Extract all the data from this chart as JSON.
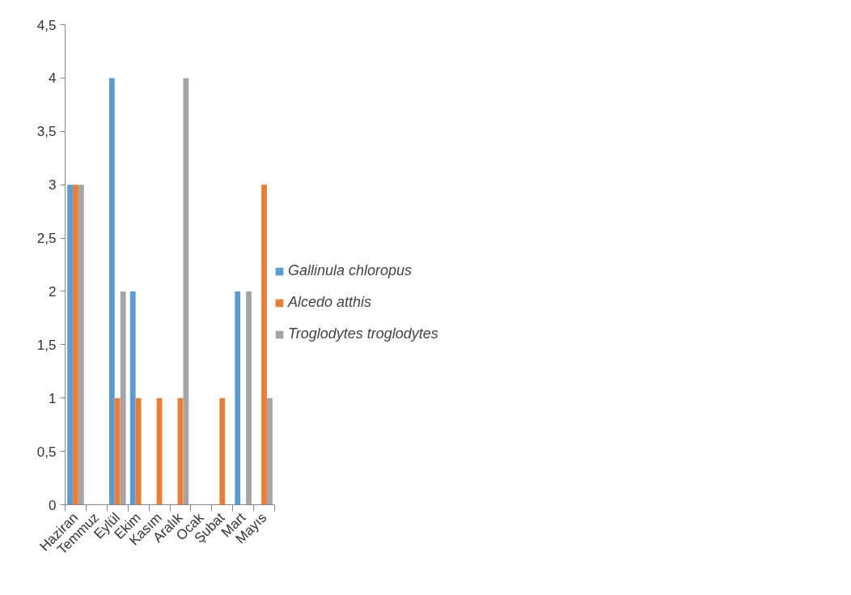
{
  "chart_data": {
    "type": "bar",
    "categories": [
      "Haziran",
      "Temmuz",
      "Eylül",
      "Ekim",
      "Kasım",
      "Aralık",
      "Ocak",
      "Şubat",
      "Mart",
      "Mayıs"
    ],
    "series": [
      {
        "name": "Gallinula chloropus",
        "color": "#5b9bd5",
        "values": [
          3,
          0,
          4,
          2,
          0,
          0,
          0,
          0,
          2,
          0
        ]
      },
      {
        "name": "Alcedo atthis",
        "color": "#ed7d31",
        "values": [
          3,
          0,
          1,
          1,
          1,
          1,
          0,
          1,
          0,
          3
        ]
      },
      {
        "name": "Troglodytes troglodytes",
        "color": "#a5a5a5",
        "values": [
          3,
          0,
          2,
          0,
          0,
          4,
          0,
          0,
          2,
          1
        ]
      }
    ],
    "ylim": [
      0,
      4.5
    ],
    "yticks": [
      0,
      {
        "value": 0.5,
        "label": "0,5"
      },
      1,
      {
        "value": 1.5,
        "label": "1,5"
      },
      2,
      {
        "value": 2.5,
        "label": "2,5"
      },
      3,
      {
        "value": 3.5,
        "label": "3,5"
      },
      4,
      {
        "value": 4.5,
        "label": "4,5"
      }
    ],
    "grid": false,
    "legend": "right"
  }
}
